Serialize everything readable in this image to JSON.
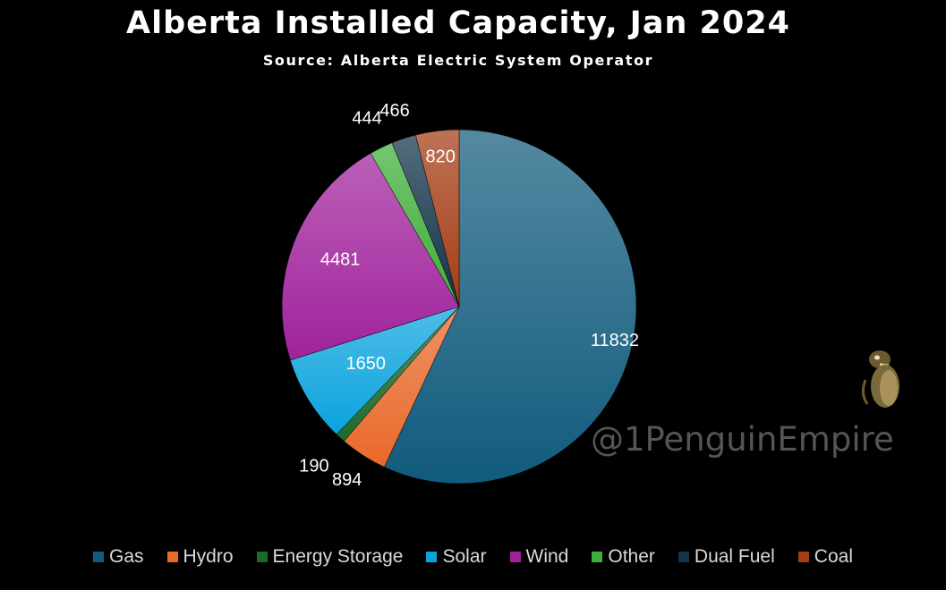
{
  "chart_data": {
    "type": "pie",
    "title": "Alberta Installed Capacity, Jan 2024",
    "subtitle": "Source: Alberta Electric System Operator",
    "categories": [
      "Gas",
      "Hydro",
      "Energy Storage",
      "Solar",
      "Wind",
      "Other",
      "Dual Fuel",
      "Coal"
    ],
    "values": [
      11832,
      894,
      190,
      1650,
      4481,
      444,
      466,
      820
    ],
    "labels": [
      "11832",
      "894",
      "190",
      "1650",
      "4481",
      "444",
      "466",
      "820"
    ],
    "colors": [
      "#115b7d",
      "#e9692a",
      "#1c6b2a",
      "#0aa3dd",
      "#a0229c",
      "#3fae3a",
      "#12334a",
      "#a33d14"
    ],
    "legend": "bottom",
    "start": "12 o'clock",
    "direction": "clockwise"
  },
  "watermark": "@1PenguinEmpire",
  "logo_icon": "penguin-icon"
}
